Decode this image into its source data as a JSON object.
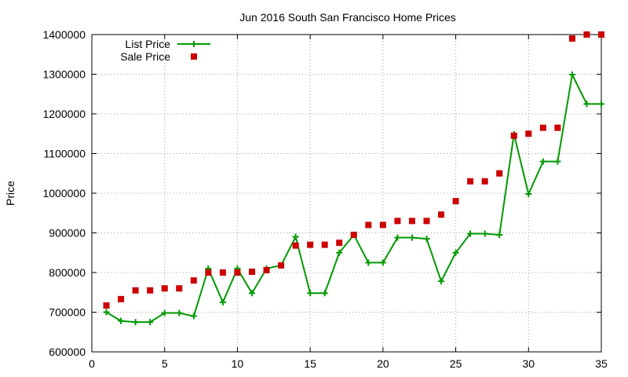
{
  "chart_data": {
    "type": "line",
    "title": "Jun 2016 South San Francisco Home Prices",
    "xlabel": "",
    "ylabel": "Price",
    "xlim": [
      0,
      35
    ],
    "ylim": [
      600000,
      1400000
    ],
    "xticks": [
      0,
      5,
      10,
      15,
      20,
      25,
      30,
      35
    ],
    "yticks": [
      600000,
      700000,
      800000,
      900000,
      1000000,
      1100000,
      1200000,
      1300000,
      1400000
    ],
    "grid": true,
    "legend_position": "top-left",
    "x": [
      1,
      2,
      3,
      4,
      5,
      6,
      7,
      8,
      9,
      10,
      11,
      12,
      13,
      14,
      15,
      16,
      17,
      18,
      19,
      20,
      21,
      22,
      23,
      24,
      25,
      26,
      27,
      28,
      29,
      30,
      31,
      32,
      33,
      34,
      35
    ],
    "series": [
      {
        "name": "List Price",
        "style": "line-cross",
        "color": "#009900",
        "values": [
          700000,
          678000,
          675000,
          675000,
          698000,
          698000,
          690000,
          810000,
          725000,
          810000,
          748000,
          810000,
          818000,
          890000,
          748000,
          748000,
          850000,
          895000,
          825000,
          825000,
          888000,
          888000,
          885000,
          778000,
          850000,
          898000,
          898000,
          895000,
          1149000,
          998000,
          1080000,
          1080000,
          1299000,
          1225000,
          1225000
        ]
      },
      {
        "name": "Sale Price",
        "style": "square",
        "color": "#cc0000",
        "values": [
          717000,
          733000,
          755000,
          755000,
          760000,
          760000,
          780000,
          800000,
          800000,
          800000,
          802000,
          806000,
          818000,
          868000,
          870000,
          870000,
          875000,
          895000,
          920000,
          920000,
          930000,
          930000,
          930000,
          946000,
          980000,
          1030000,
          1030000,
          1050000,
          1145000,
          1150000,
          1165000,
          1165000,
          1390000,
          1400000,
          1400000
        ]
      }
    ]
  }
}
